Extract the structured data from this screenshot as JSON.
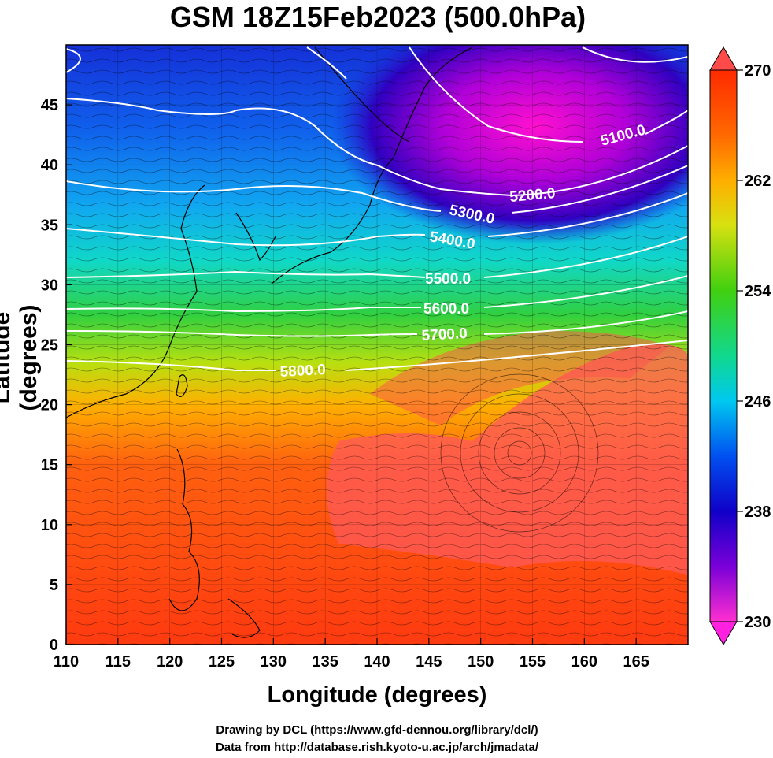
{
  "title": "GSM 18Z15Feb2023 (500.0hPa)",
  "axes": {
    "xlabel": "Longitude (degrees)",
    "ylabel": "Latitude  (degrees)",
    "x_ticks": [
      "110",
      "115",
      "120",
      "125",
      "130",
      "135",
      "140",
      "145",
      "150",
      "155",
      "160",
      "165"
    ],
    "y_ticks": [
      "0",
      "5",
      "10",
      "15",
      "20",
      "25",
      "30",
      "35",
      "40",
      "45"
    ],
    "xlim": [
      110,
      170
    ],
    "ylim": [
      0,
      50
    ]
  },
  "colorbar": {
    "ticks": [
      "230",
      "238",
      "246",
      "254",
      "262",
      "270"
    ],
    "range": [
      230,
      270
    ],
    "colors": [
      "#ff2fd0",
      "#7a00d8",
      "#1000c8",
      "#0050f0",
      "#00c8f0",
      "#10d880",
      "#30d010",
      "#d8e010",
      "#ff9a00",
      "#ff2a00"
    ]
  },
  "contours": {
    "labels": [
      "5100.0",
      "5200.0",
      "5300.0",
      "5400.0",
      "5500.0",
      "5600.0",
      "5700.0",
      "5800.0"
    ]
  },
  "credits": {
    "line1": "Drawing by DCL (https://www.gfd-dennou.org/library/dcl/)",
    "line2": "Data from http://database.rish.kyoto-u.ac.jp/arch/jmadata/"
  },
  "chart_data": {
    "type": "heatmap",
    "variable": "500.0hPa",
    "xlim": [
      110,
      170
    ],
    "ylim": [
      0,
      50
    ],
    "color_range": [
      230,
      270
    ],
    "contour_levels": [
      5100,
      5200,
      5300,
      5400,
      5500,
      5600,
      5700,
      5800
    ]
  }
}
